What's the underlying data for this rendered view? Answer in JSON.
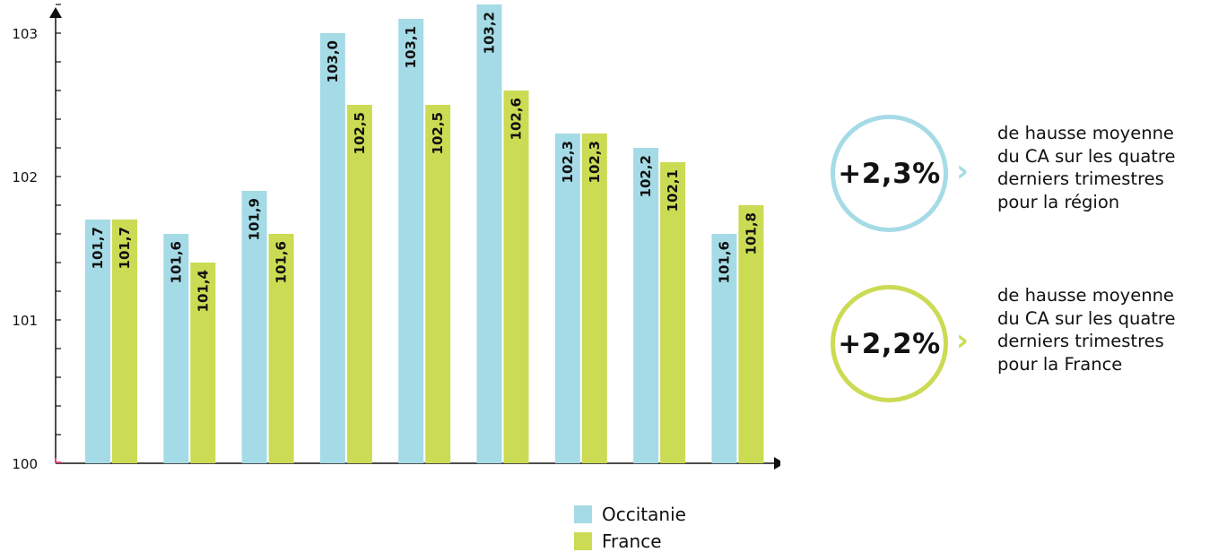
{
  "chart_data": {
    "type": "bar",
    "categories": [
      "",
      "",
      "",
      "",
      "",
      "",
      "",
      "",
      ""
    ],
    "series": [
      {
        "name": "Occitanie",
        "color": "#a5dbe6",
        "values": [
          101.7,
          101.6,
          101.9,
          103.0,
          103.1,
          103.2,
          102.3,
          102.2,
          101.6
        ],
        "labels": [
          "101,7",
          "101,6",
          "101,9",
          "103,0",
          "103,1",
          "103,2",
          "102,3",
          "102,2",
          "101,6"
        ]
      },
      {
        "name": "France",
        "color": "#cbdb53",
        "values": [
          101.7,
          101.4,
          101.6,
          102.5,
          102.5,
          102.6,
          102.3,
          102.1,
          101.8
        ],
        "labels": [
          "101,7",
          "101,4",
          "101,6",
          "102,5",
          "102,5",
          "102,6",
          "102,3",
          "102,1",
          "101,8"
        ]
      }
    ],
    "ylim": [
      100,
      103.2
    ],
    "yticks": [
      {
        "value": 100,
        "label": "100"
      },
      {
        "value": 101,
        "label": "101"
      },
      {
        "value": 102,
        "label": "102"
      },
      {
        "value": 103,
        "label": "103"
      }
    ],
    "minor_tick_step": 0.2,
    "grid": false,
    "legend_position": "bottom"
  },
  "stats": [
    {
      "value": "+2,3%",
      "color": "#a5dbe6",
      "description": "de hausse moyenne\ndu CA sur les quatre\nderniers trimestres\npour la région",
      "chevron": "›"
    },
    {
      "value": "+2,2%",
      "color": "#cbdb53",
      "description": "de hausse moyenne\ndu CA sur les quatre\nderniers trimestres\npour la France",
      "chevron": "›"
    }
  ],
  "legend": [
    {
      "label": "Occitanie",
      "color": "#a5dbe6"
    },
    {
      "label": "France",
      "color": "#cbdb53"
    }
  ],
  "colors": {
    "axis": "#111111",
    "origin_mark": "#e0447c"
  }
}
